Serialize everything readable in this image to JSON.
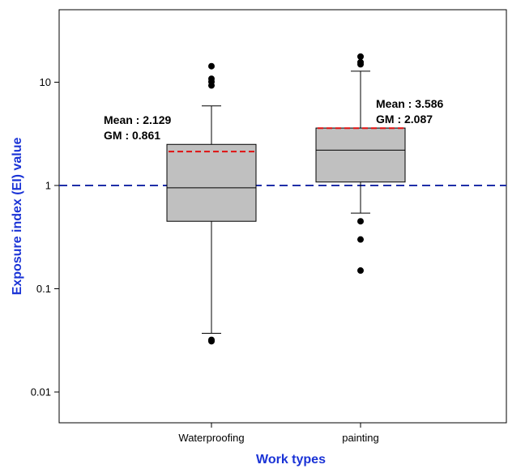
{
  "chart_data": {
    "type": "box",
    "title": "",
    "xlabel": "Work types",
    "ylabel": "Exposure index (EI) value",
    "y_scale": "log",
    "ylim": [
      0.005,
      50
    ],
    "y_ticks": [
      0.01,
      0.1,
      1,
      10
    ],
    "y_tick_labels": [
      "0.01",
      "0.1",
      "1",
      "10"
    ],
    "categories": [
      "Waterproofing",
      "painting"
    ],
    "boxes": [
      {
        "name": "Waterproofing",
        "whisker_low": 0.037,
        "q1": 0.45,
        "median": 0.95,
        "q3": 2.5,
        "whisker_high": 5.9,
        "mean": 2.129,
        "outliers": [
          0.031,
          0.032,
          9.3,
          10.1,
          10.8,
          14.3
        ],
        "annotation": [
          "Mean : 2.129",
          "GM : 0.861"
        ]
      },
      {
        "name": "painting",
        "whisker_low": 0.54,
        "q1": 1.08,
        "median": 2.2,
        "q3": 3.6,
        "whisker_high": 12.8,
        "mean": 3.586,
        "outliers": [
          0.15,
          0.3,
          0.45,
          14.9,
          15.6,
          17.7
        ],
        "annotation": [
          "Mean : 3.586",
          "GM : 2.087"
        ]
      }
    ],
    "reference_line": {
      "value": 1,
      "style": "dashed",
      "color": "#1f2fa8"
    },
    "colors": {
      "box_fill": "#c0c0c0",
      "mean_line": "#e01010",
      "axis_title": "#1a33d6",
      "outlier": "#000000"
    },
    "grid": false,
    "legend": "none"
  }
}
